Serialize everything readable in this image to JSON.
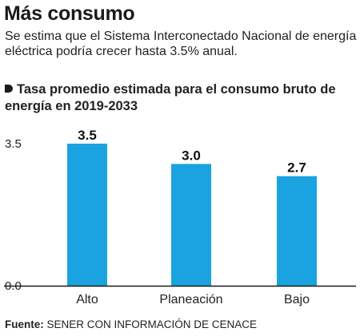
{
  "header": {
    "title": "Más consumo",
    "subtitle": "Se estima que el Sistema Interconectado Nacional de energía eléctrica podría crecer hasta 3.5% anual."
  },
  "source": {
    "label": "Fuente:",
    "text": "SENER CON INFORMACIÓN DE CENACE"
  },
  "chart_data": {
    "type": "bar",
    "title": "Tasa promedio estimada para el consumo bruto de energía en 2019-2033",
    "categories": [
      "Alto",
      "Planeación",
      "Bajo"
    ],
    "values": [
      3.5,
      3.0,
      2.7
    ],
    "value_labels": [
      "3.5",
      "3.0",
      "2.7"
    ],
    "y_ticks": [
      0.0,
      3.5
    ],
    "y_tick_labels": [
      "0.0",
      "3.5"
    ],
    "ylim": [
      0,
      3.5
    ],
    "xlabel": "",
    "ylabel": "",
    "grid": false,
    "bar_color": "#1aa3e0",
    "axis_color": "#1a1a1a"
  }
}
